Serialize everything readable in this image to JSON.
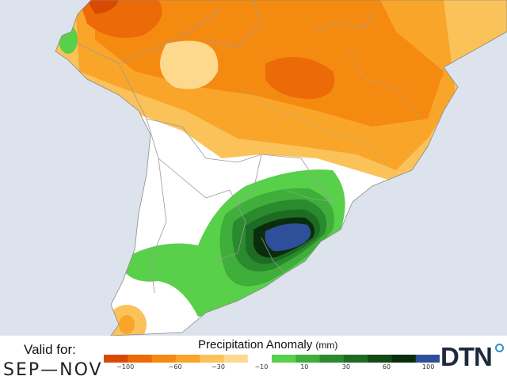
{
  "map": {
    "ocean_color": "#dde3ec",
    "land_color": "#ffffff",
    "border_color": "#9a9a9a"
  },
  "footer": {
    "valid_label": "Valid for:",
    "valid_period": "SEP—NOV",
    "legend_title": "Precipitation Anomaly",
    "legend_units": "(mm)",
    "logo_text": "DTN"
  },
  "legend": {
    "colors": [
      "#d94a00",
      "#ed6a08",
      "#f58a10",
      "#f9a52a",
      "#fbc25a",
      "#fdd98e",
      "#ffffff",
      "#58d04a",
      "#3fae3b",
      "#2a8a2e",
      "#1e6b22",
      "#124a16",
      "#0a2e0c",
      "#2f4f9a"
    ],
    "ticks": [
      {
        "label": "−100",
        "pos": 0.08
      },
      {
        "label": "−60",
        "pos": 0.265
      },
      {
        "label": "−30",
        "pos": 0.425
      },
      {
        "label": "−10",
        "pos": 0.585
      },
      {
        "label": "10",
        "pos": 0.745
      },
      {
        "label": "30",
        "pos": 0.9
      },
      {
        "label": "60",
        "pos": 1.05
      },
      {
        "label": "100",
        "pos": 1.205
      }
    ]
  }
}
